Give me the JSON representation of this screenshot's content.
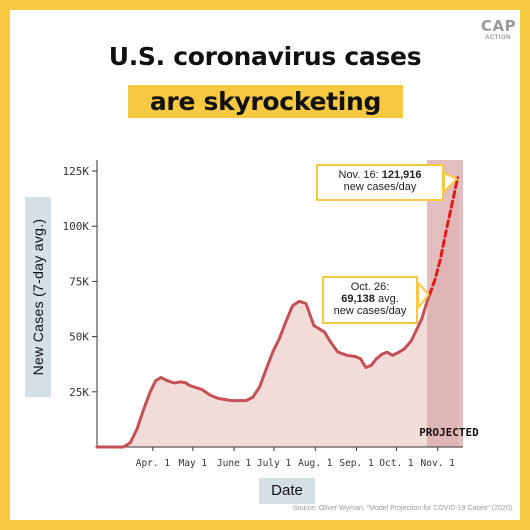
{
  "branding": {
    "logo_line1": "CAP",
    "logo_line2": "ACTION"
  },
  "title": {
    "line1": "U.S. coronavirus cases",
    "line2": "are skyrocketing"
  },
  "source": "Source: Oliver Wyman, \"Model Projection for COVID-19 Cases\" (2020).",
  "colors": {
    "accent": "#f7c940",
    "line": "#c55055",
    "fill": "#f1dcda",
    "projected_band": "#d9a8a8",
    "projected_line": "#e01b1b",
    "label_box": "#d5dfe6"
  },
  "chart_data": {
    "type": "area",
    "ylabel": "New Cases (7-day avg.)",
    "xlabel": "Date",
    "ylim": [
      0,
      130000
    ],
    "yticks": [
      25000,
      50000,
      75000,
      100000,
      125000
    ],
    "ytick_labels": [
      "25K",
      "50K",
      "75K",
      "100K",
      "125K"
    ],
    "xticks": [
      "2020-04-01",
      "2020-05-01",
      "2020-06-01",
      "2020-07-01",
      "2020-08-01",
      "2020-09-01",
      "2020-10-01",
      "2020-11-01"
    ],
    "xtick_labels": [
      "Apr. 1",
      "May 1",
      "June 1",
      "July 1",
      "Aug. 1",
      "Sep. 1",
      "Oct. 1",
      "Nov. 1"
    ],
    "xlim": [
      "2020-02-19",
      "2020-11-20"
    ],
    "series": [
      {
        "values": [
          [
            "2020-02-19",
            0
          ],
          [
            "2020-03-10",
            0
          ],
          [
            "2020-03-15",
            2000
          ],
          [
            "2020-03-20",
            8000
          ],
          [
            "2020-03-25",
            17000
          ],
          [
            "2020-03-30",
            25000
          ],
          [
            "2020-04-03",
            30000
          ],
          [
            "2020-04-07",
            31500
          ],
          [
            "2020-04-12",
            30000
          ],
          [
            "2020-04-17",
            29000
          ],
          [
            "2020-04-22",
            29500
          ],
          [
            "2020-04-26",
            29000
          ],
          [
            "2020-04-28",
            28000
          ],
          [
            "2020-05-03",
            27000
          ],
          [
            "2020-05-08",
            26000
          ],
          [
            "2020-05-14",
            23500
          ],
          [
            "2020-05-20",
            22000
          ],
          [
            "2020-05-25",
            21500
          ],
          [
            "2020-05-30",
            21000
          ],
          [
            "2020-06-05",
            21000
          ],
          [
            "2020-06-10",
            21000
          ],
          [
            "2020-06-15",
            22500
          ],
          [
            "2020-06-20",
            27000
          ],
          [
            "2020-06-25",
            35000
          ],
          [
            "2020-06-30",
            43000
          ],
          [
            "2020-07-05",
            49000
          ],
          [
            "2020-07-10",
            57000
          ],
          [
            "2020-07-15",
            64000
          ],
          [
            "2020-07-20",
            66000
          ],
          [
            "2020-07-25",
            65000
          ],
          [
            "2020-07-28",
            60000
          ],
          [
            "2020-07-31",
            55000
          ],
          [
            "2020-08-04",
            53500
          ],
          [
            "2020-08-08",
            52000
          ],
          [
            "2020-08-12",
            48000
          ],
          [
            "2020-08-18",
            43000
          ],
          [
            "2020-08-25",
            41500
          ],
          [
            "2020-08-31",
            41000
          ],
          [
            "2020-09-04",
            40000
          ],
          [
            "2020-09-08",
            36000
          ],
          [
            "2020-09-12",
            37000
          ],
          [
            "2020-09-16",
            40000
          ],
          [
            "2020-09-20",
            42000
          ],
          [
            "2020-09-24",
            43000
          ],
          [
            "2020-09-28",
            41500
          ],
          [
            "2020-10-03",
            43000
          ],
          [
            "2020-10-07",
            44500
          ],
          [
            "2020-10-12",
            48000
          ],
          [
            "2020-10-16",
            53000
          ],
          [
            "2020-10-20",
            58000
          ],
          [
            "2020-10-24",
            66000
          ],
          [
            "2020-10-26",
            69138
          ]
        ]
      },
      {
        "projected": true,
        "values": [
          [
            "2020-10-26",
            69138
          ],
          [
            "2020-10-30",
            76000
          ],
          [
            "2020-11-03",
            85000
          ],
          [
            "2020-11-07",
            97000
          ],
          [
            "2020-11-11",
            108000
          ],
          [
            "2020-11-16",
            121916
          ]
        ]
      }
    ],
    "projected_label": "PROJECTED",
    "projected_start": "2020-10-24",
    "annotations": [
      {
        "date_label": "Nov. 16:",
        "value": "121,916",
        "text": "new cases/day"
      },
      {
        "date_label": "Oct. 26:",
        "value": "69,138",
        "value_suffix": "avg.",
        "text": "new cases/day"
      }
    ]
  }
}
